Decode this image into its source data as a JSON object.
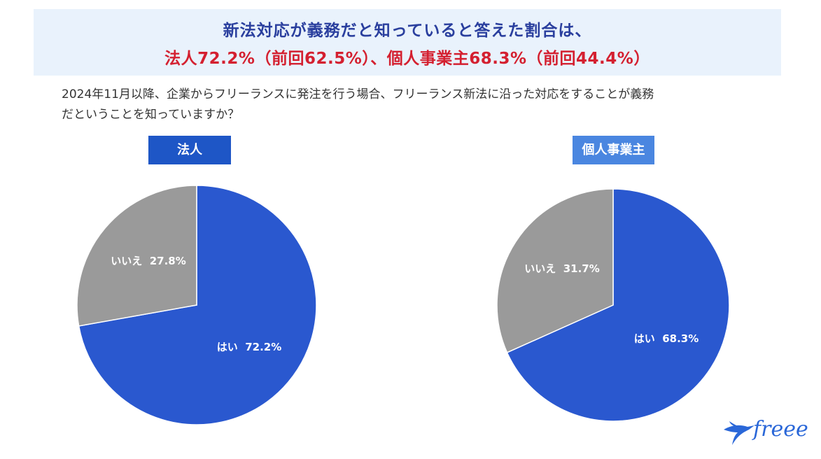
{
  "header": {
    "title_line1": "新法対応が義務だと知っていると答えた割合は、",
    "title_line2": "法人72.2%（前回62.5%）、個人事業主68.3%（前回44.4%）"
  },
  "question": {
    "line1": "2024年11月以降、企業からフリーランスに発注を行う場合、フリーランス新法に沿った対応をすることが義務",
    "line2": "だということを知っていますか？"
  },
  "colors": {
    "yes": "#2a58cf",
    "no": "#9a9a9a",
    "corp_label_bg": "#1e56c6",
    "indiv_label_bg": "#4a86e0",
    "title": "#2a3f9e",
    "highlight": "#d42030"
  },
  "chart_data": [
    {
      "type": "pie",
      "title": "法人",
      "labels": [
        "はい",
        "いいえ"
      ],
      "values": [
        72.2,
        27.8
      ],
      "slice_labels": [
        "はい  72.2%",
        "いいえ  27.8%"
      ]
    },
    {
      "type": "pie",
      "title": "個人事業主",
      "labels": [
        "はい",
        "いいえ"
      ],
      "values": [
        68.3,
        31.7
      ],
      "slice_labels": [
        "はい  68.3%",
        "いいえ  31.7%"
      ]
    }
  ],
  "logo": {
    "text": "freee",
    "icon": "bird-logo-icon"
  }
}
